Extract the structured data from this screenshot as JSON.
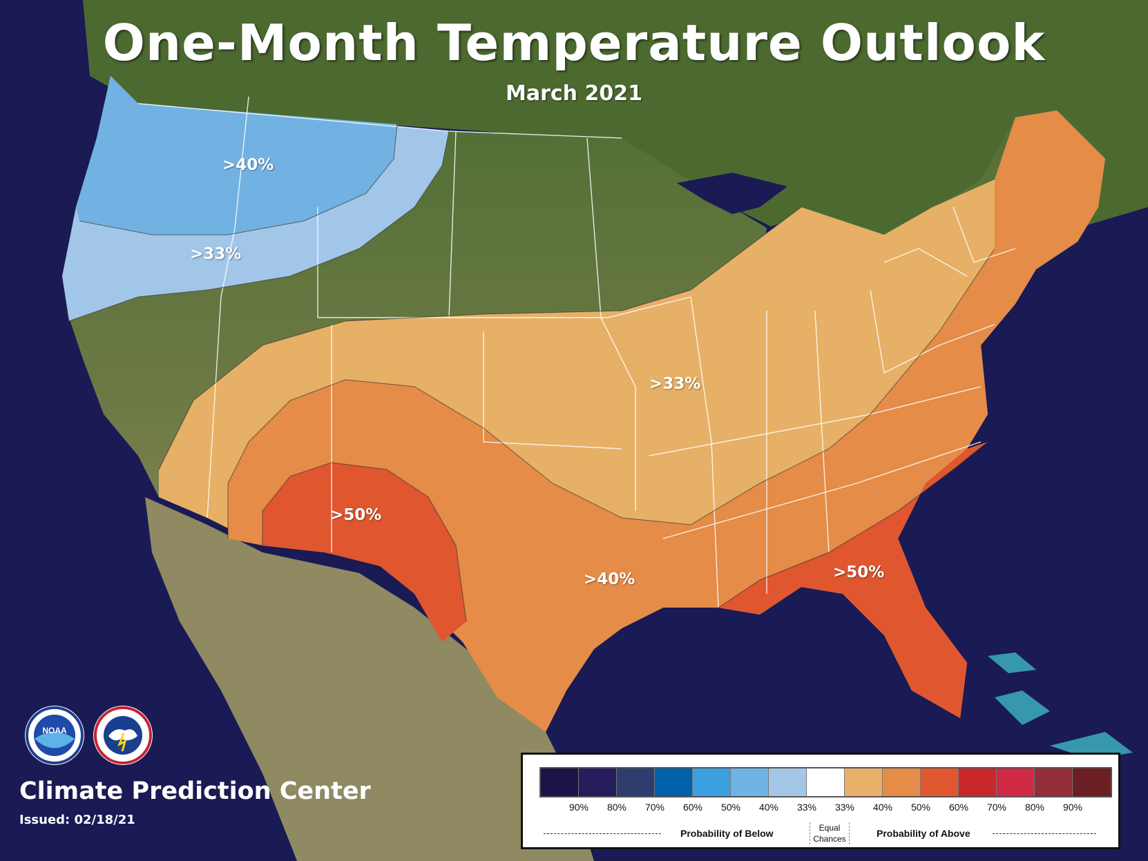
{
  "title": "One-Month Temperature Outlook",
  "subtitle": "March 2021",
  "probability_labels": [
    ">40%",
    ">33%",
    ">33%",
    ">50%",
    ">40%",
    ">50%"
  ],
  "agency": "Climate Prediction Center",
  "issued": "Issued: 02/18/21",
  "logos": {
    "noaa": "NOAA",
    "nws": "NATIONAL WEATHER SERVICE"
  },
  "legend": {
    "swatch_colors": [
      "#1b1448",
      "#251c5c",
      "#2f3d6e",
      "#0060aa",
      "#3aa0df",
      "#6fb4e4",
      "#a5c7e7",
      "#ffffff",
      "#e9b06a",
      "#e58c48",
      "#e0572f",
      "#c9282a",
      "#cf2945",
      "#922e38",
      "#6b1f23"
    ],
    "ticks": [
      "90%",
      "80%",
      "70%",
      "60%",
      "50%",
      "40%",
      "33%",
      "33%",
      "40%",
      "50%",
      "60%",
      "70%",
      "80%",
      "90%"
    ],
    "below_label": "Probability of Below",
    "equal_label": "Equal Chances",
    "above_label": "Probability of Above"
  },
  "colors": {
    "ocean": "#1a1a55",
    "below_40": "#72b2e2",
    "below_33": "#a2c6e8",
    "above_33": "#e6b066",
    "above_40": "#e48c48",
    "above_50": "#df562f"
  }
}
